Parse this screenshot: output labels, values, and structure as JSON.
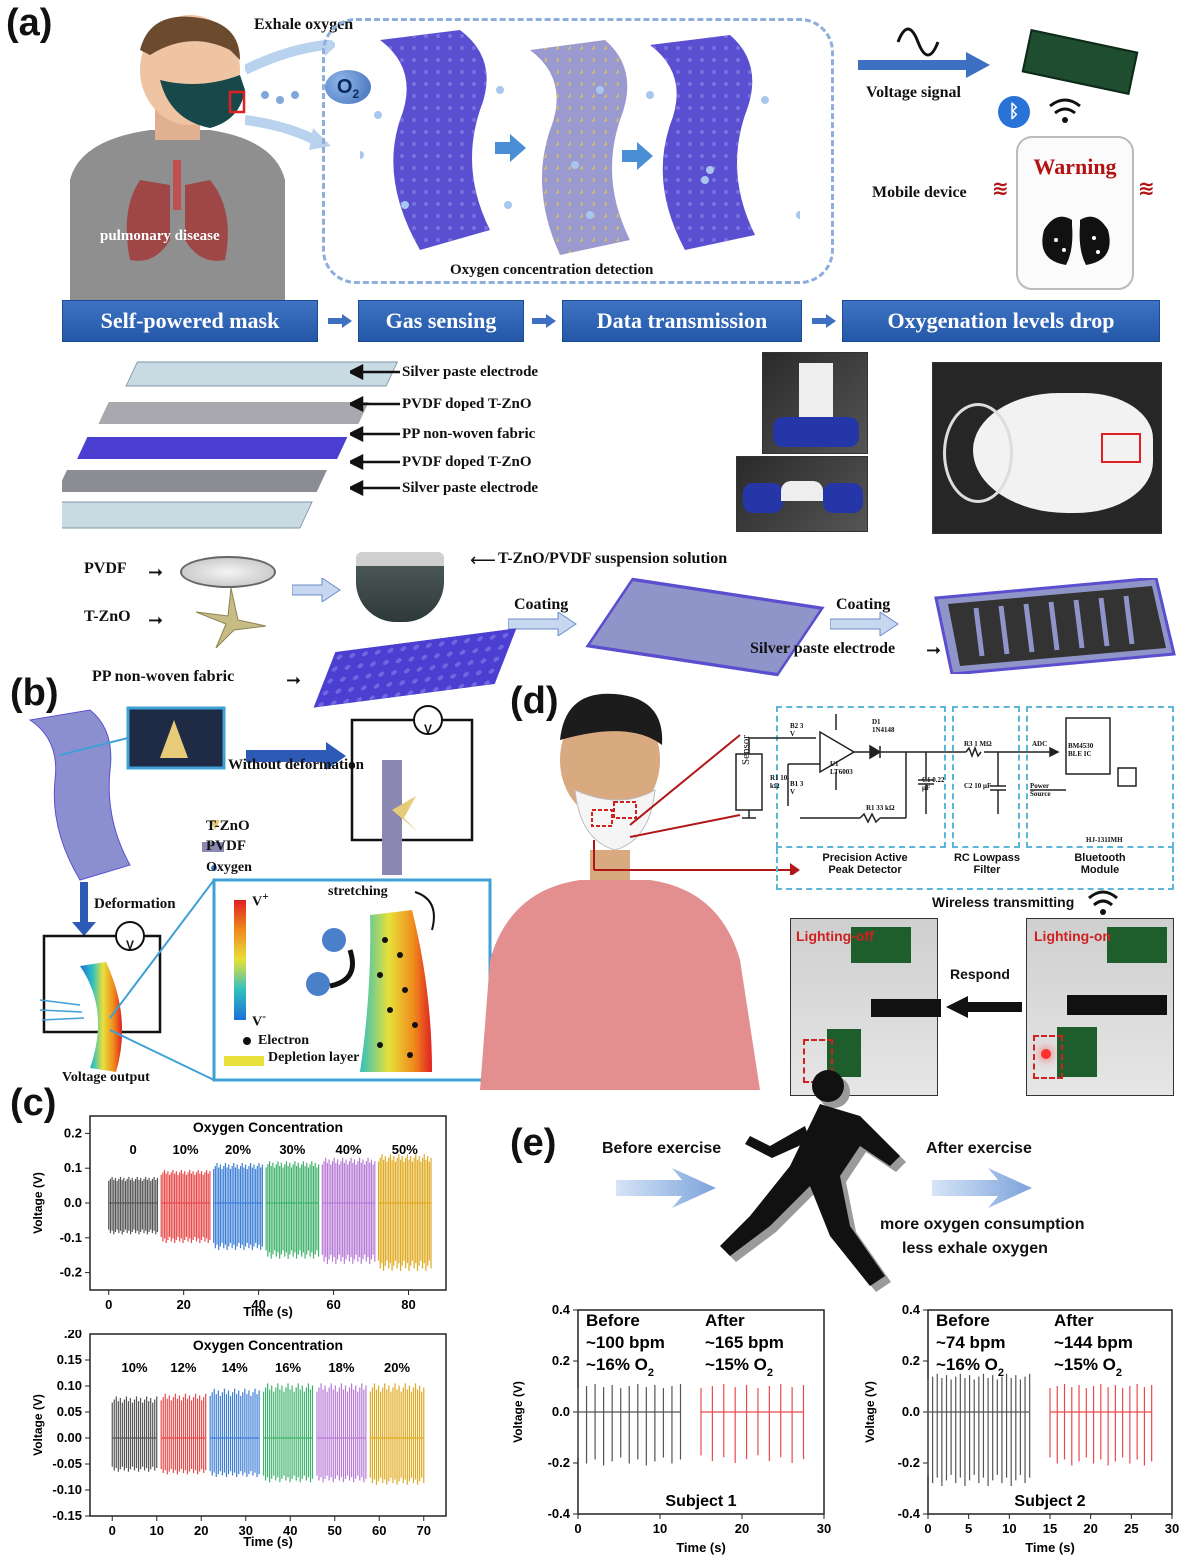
{
  "panel_a": {
    "letter": "(a)",
    "exhale_oxygen": "Exhale oxygen",
    "o2_bubble": "O",
    "o2_sub": "2",
    "pulmonary_disease": "pulmonary disease",
    "oxygen_detection": "Oxygen concentration detection",
    "voltage_signal": "Voltage signal",
    "warning": "Warning",
    "mobile_device": "Mobile device",
    "flow": [
      "Self-powered mask",
      "Gas sensing",
      "Data transmission",
      "Oxygenation levels drop"
    ],
    "layers": [
      "Silver paste electrode",
      "PVDF doped T-ZnO",
      "PP non-woven fabric",
      "PVDF doped T-ZnO",
      "Silver paste electrode"
    ],
    "fab": {
      "pvdf": "PVDF",
      "tzno": "T-ZnO",
      "suspension": "T-ZnO/PVDF suspension solution",
      "coating1": "Coating",
      "coating2": "Coating",
      "silver": "Silver paste electrode",
      "pp": "PP non-woven fabric"
    }
  },
  "panel_b": {
    "letter": "(b)",
    "without_deformation": "Without deformation",
    "deformation": "Deformation",
    "voltage_output": "Voltage output",
    "legend": [
      "T-ZnO",
      "PVDF",
      "Oxygen"
    ],
    "v_plus": "V",
    "v_minus": "V",
    "electron": "Electron",
    "depletion": "Depletion layer",
    "stretching": "stretching",
    "meter_label": "V"
  },
  "panel_c": {
    "letter": "(c)"
  },
  "panel_d": {
    "letter": "(d)",
    "sensor": "Sensor",
    "precision": "Precision Active Peak Detector",
    "rc_lowpass": "RC Lowpass Filter",
    "bluetooth": "Bluetooth Module",
    "wireless": "Wireless transmitting",
    "lighting_off": "Lighting-off",
    "lighting_on": "Lighting-on",
    "respond": "Respond",
    "components": [
      "B2 3 V",
      "D1 1N4148",
      "U1 LT6003",
      "R1 10 kΩ",
      "B1 3 V",
      "R1 33 kΩ",
      "C1 0.22 μF",
      "R3 1 MΩ",
      "C2 10 μF",
      "ADC",
      "Power Source",
      "BM4530 BLE IC",
      "HJ-131IMH"
    ]
  },
  "panel_e": {
    "letter": "(e)",
    "before_exercise": "Before exercise",
    "after_exercise": "After exercise",
    "note1": "more oxygen consumption",
    "note2": "less exhale oxygen"
  },
  "chart_data": [
    {
      "type": "line",
      "title": "Oxygen Concentration",
      "xlabel": "Time (s)",
      "ylabel": "Voltage (V)",
      "xlim": [
        -5,
        90
      ],
      "ylim": [
        -0.25,
        0.25
      ],
      "xticks": [
        0,
        20,
        40,
        60,
        80
      ],
      "yticks": [
        -0.2,
        -0.1,
        0.0,
        0.1,
        0.2
      ],
      "series": [
        {
          "name": "0",
          "color": "#555555",
          "x_range": [
            0,
            13
          ],
          "amplitude": [
            0.075,
            -0.09
          ]
        },
        {
          "name": "10%",
          "color": "#e84a4a",
          "x_range": [
            14,
            27
          ],
          "amplitude": [
            0.095,
            -0.115
          ]
        },
        {
          "name": "20%",
          "color": "#3d7fd6",
          "x_range": [
            28,
            41
          ],
          "amplitude": [
            0.115,
            -0.135
          ]
        },
        {
          "name": "30%",
          "color": "#3fb36b",
          "x_range": [
            42,
            56
          ],
          "amplitude": [
            0.12,
            -0.16
          ]
        },
        {
          "name": "40%",
          "color": "#b77ad6",
          "x_range": [
            57,
            71
          ],
          "amplitude": [
            0.13,
            -0.175
          ]
        },
        {
          "name": "50%",
          "color": "#e0aa1f",
          "x_range": [
            72,
            86
          ],
          "amplitude": [
            0.14,
            -0.195
          ]
        }
      ]
    },
    {
      "type": "line",
      "title": "Oxygen Concentration",
      "xlabel": "Time (s)",
      "ylabel": "Voltage (V)",
      "xlim": [
        -5,
        75
      ],
      "ylim": [
        -0.15,
        0.2
      ],
      "xticks": [
        0,
        10,
        20,
        30,
        40,
        50,
        60,
        70
      ],
      "yticks": [
        -0.15,
        -0.1,
        -0.05,
        0.0,
        0.05,
        0.1,
        0.15
      ],
      "top_tick_label": ".20",
      "series": [
        {
          "name": "10%",
          "color": "#555555",
          "x_range": [
            0,
            10
          ],
          "amplitude": [
            0.08,
            -0.065
          ]
        },
        {
          "name": "12%",
          "color": "#e84a4a",
          "x_range": [
            11,
            21
          ],
          "amplitude": [
            0.085,
            -0.07
          ]
        },
        {
          "name": "14%",
          "color": "#3d7fd6",
          "x_range": [
            22,
            33
          ],
          "amplitude": [
            0.095,
            -0.075
          ]
        },
        {
          "name": "16%",
          "color": "#3fb36b",
          "x_range": [
            34,
            45
          ],
          "amplitude": [
            0.105,
            -0.085
          ]
        },
        {
          "name": "18%",
          "color": "#b77ad6",
          "x_range": [
            46,
            57
          ],
          "amplitude": [
            0.105,
            -0.085
          ]
        },
        {
          "name": "20%",
          "color": "#e0aa1f",
          "x_range": [
            58,
            70
          ],
          "amplitude": [
            0.105,
            -0.09
          ]
        }
      ]
    },
    {
      "type": "line",
      "title": "Subject 1",
      "xlabel": "Time (s)",
      "ylabel": "Voltage (V)",
      "xlim": [
        0,
        30
      ],
      "ylim": [
        -0.4,
        0.4
      ],
      "xticks": [
        0,
        10,
        20,
        30
      ],
      "yticks": [
        -0.4,
        -0.2,
        0.0,
        0.2,
        0.4
      ],
      "annotations": {
        "before": [
          "Before",
          "~100 bpm",
          "~16% O"
        ],
        "after": [
          "After",
          "~165 bpm",
          "~15% O"
        ]
      },
      "series": [
        {
          "name": "Before",
          "color": "#555555",
          "x_range": [
            0,
            12.5
          ],
          "peaks": 12,
          "amplitude": [
            0.11,
            -0.21
          ]
        },
        {
          "name": "After",
          "color": "#e84a4a",
          "x_range": [
            15,
            27.5
          ],
          "peaks": 9,
          "amplitude": [
            0.11,
            -0.2
          ]
        }
      ]
    },
    {
      "type": "line",
      "title": "Subject 2",
      "xlabel": "Time (s)",
      "ylabel": "Voltage (V)",
      "xlim": [
        0,
        30
      ],
      "ylim": [
        -0.4,
        0.4
      ],
      "xticks": [
        0,
        5,
        10,
        15,
        20,
        25,
        30
      ],
      "yticks": [
        -0.4,
        -0.2,
        0.0,
        0.2,
        0.4
      ],
      "annotations": {
        "before": [
          "Before",
          "~74 bpm",
          "~16% O"
        ],
        "after": [
          "After",
          "~144 bpm",
          "~15% O"
        ]
      },
      "series": [
        {
          "name": "Before",
          "color": "#555555",
          "x_range": [
            0,
            12.5
          ],
          "peaks": 22,
          "amplitude": [
            0.15,
            -0.29
          ]
        },
        {
          "name": "After",
          "color": "#e84a4a",
          "x_range": [
            15,
            27.5
          ],
          "peaks": 14,
          "amplitude": [
            0.11,
            -0.21
          ]
        }
      ]
    }
  ]
}
